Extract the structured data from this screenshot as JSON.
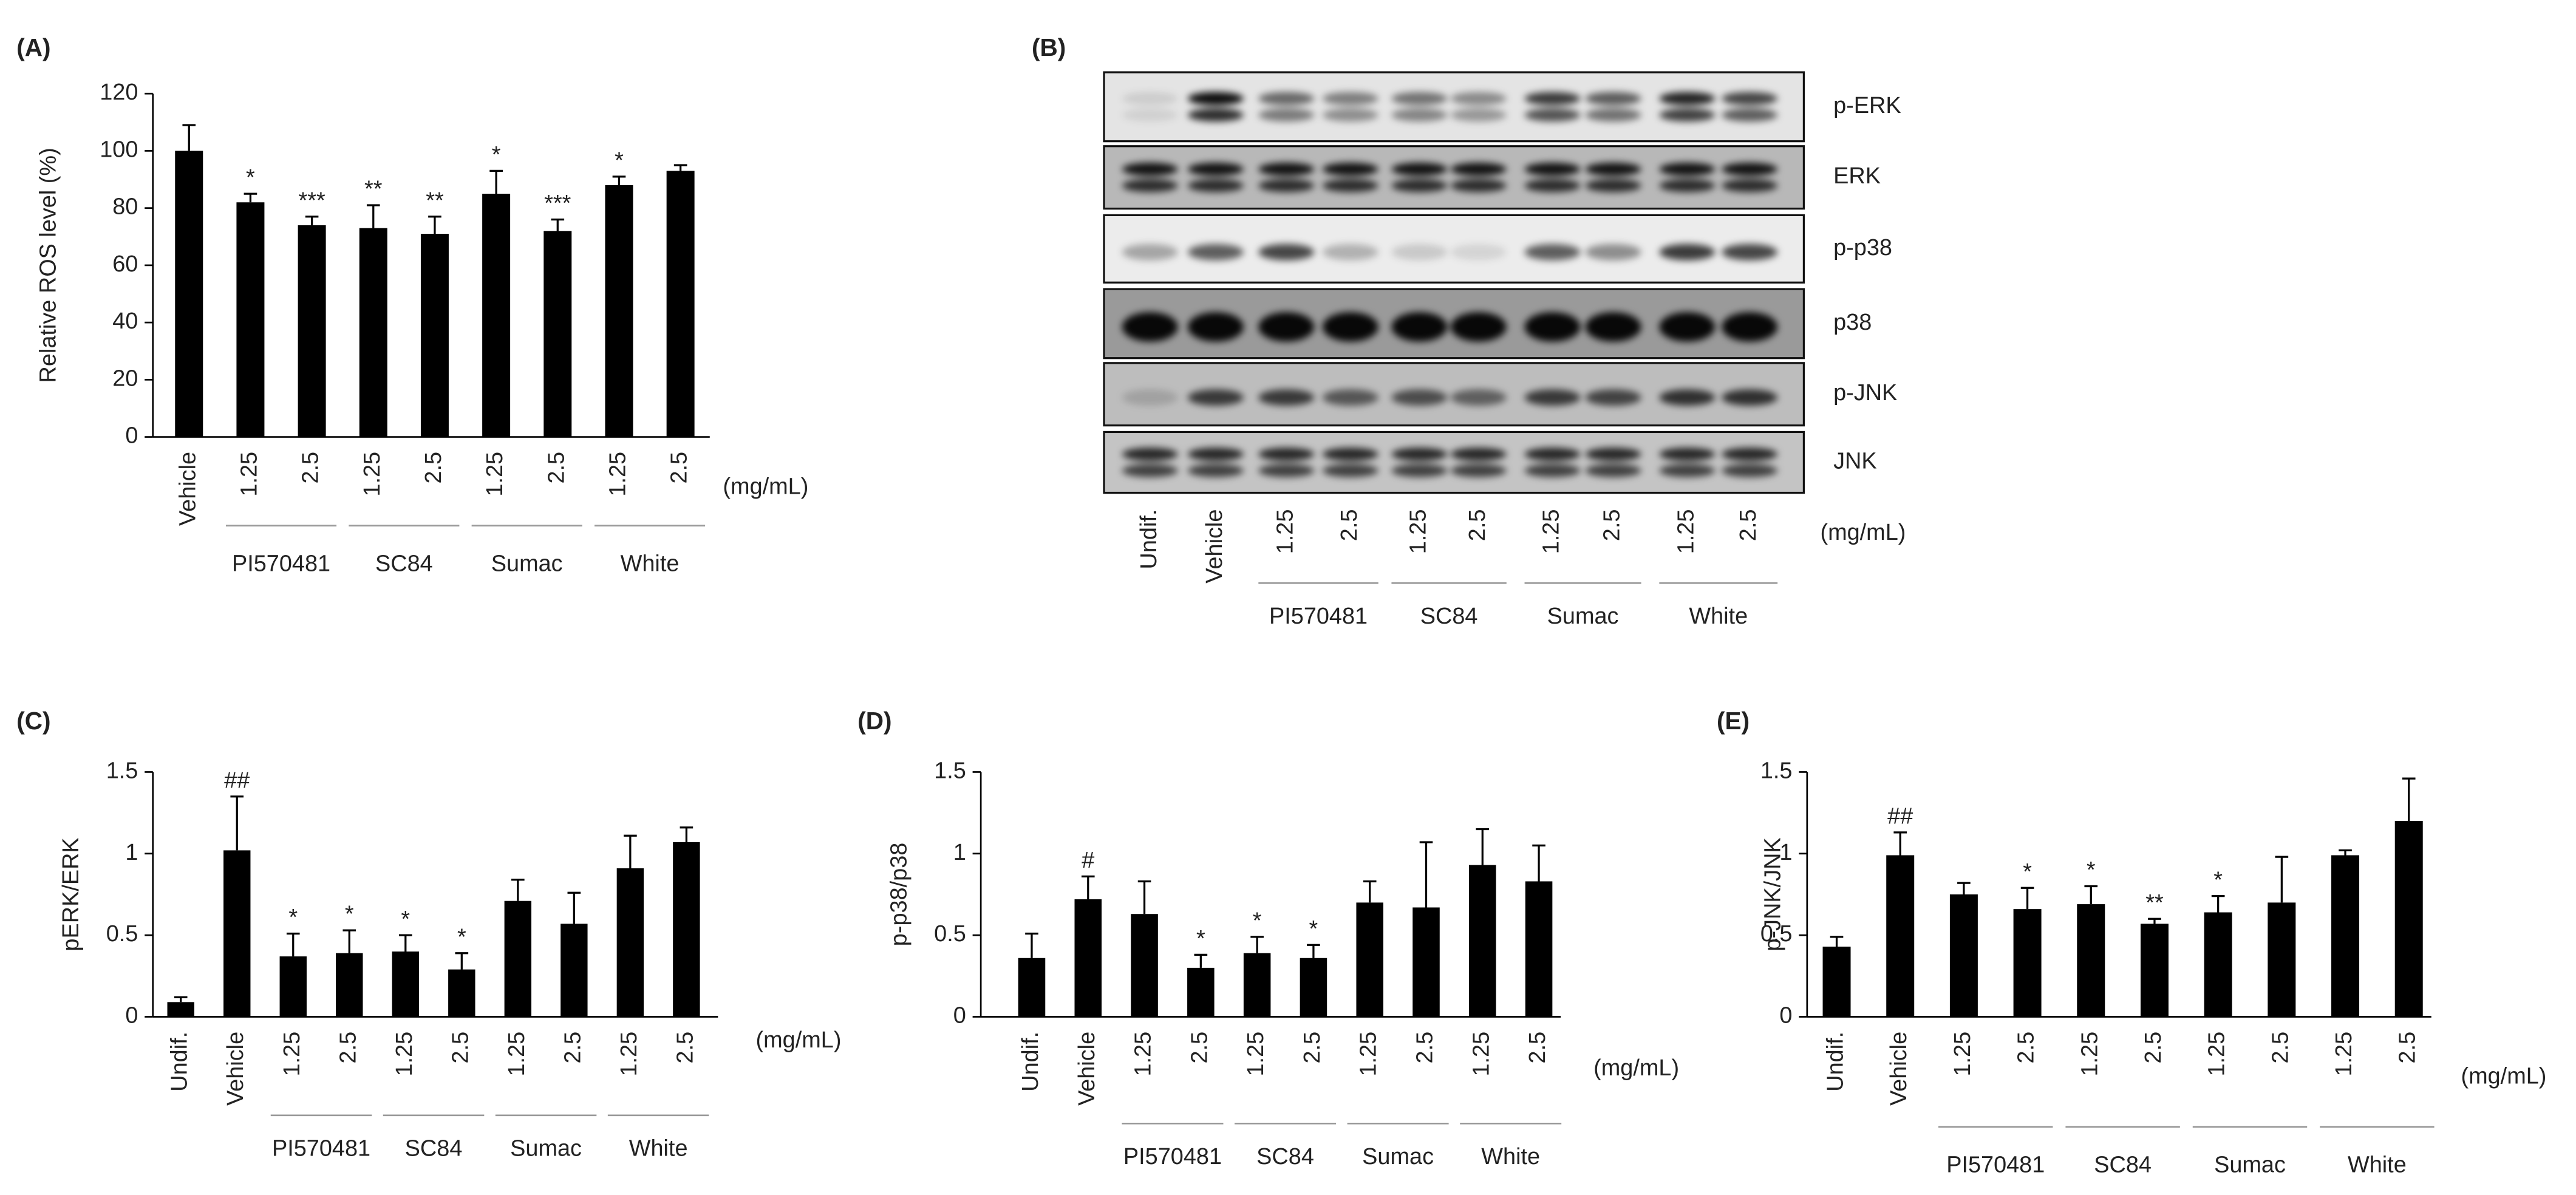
{
  "chart_data": [
    {
      "type": "bar",
      "panel_label": "(A)",
      "y_label": "Relative ROS level (%)",
      "categories": [
        "Vehicle",
        "1.25",
        "2.5",
        "1.25",
        "2.5",
        "1.25",
        "2.5",
        "1.25",
        "2.5"
      ],
      "values": [
        100,
        82,
        74,
        73,
        71,
        85,
        72,
        88,
        93
      ],
      "errors": [
        9,
        3,
        3,
        8,
        6,
        8,
        4,
        3,
        2
      ],
      "annotations": [
        null,
        "*",
        "***",
        "**",
        "**",
        "*",
        "***",
        "*",
        null
      ],
      "groups": [
        "PI570481",
        "SC84",
        "Sumac",
        "White"
      ],
      "unit": "(mg/mL)",
      "ylim": [
        0,
        120
      ],
      "yticks": [
        0,
        20,
        40,
        60,
        80,
        100,
        120
      ],
      "color": "#000000"
    },
    {
      "type": "bar",
      "panel_label": "(C)",
      "y_label": "pERK/ERK",
      "categories": [
        "Undif.",
        "Vehicle",
        "1.25",
        "2.5",
        "1.25",
        "2.5",
        "1.25",
        "2.5",
        "1.25",
        "2.5"
      ],
      "values": [
        0.09,
        1.02,
        0.37,
        0.39,
        0.4,
        0.29,
        0.71,
        0.57,
        0.91,
        1.07
      ],
      "errors": [
        0.03,
        0.33,
        0.14,
        0.14,
        0.1,
        0.1,
        0.13,
        0.19,
        0.2,
        0.09
      ],
      "annotations": [
        null,
        "##",
        "*",
        "*",
        "*",
        "*",
        null,
        null,
        null,
        null
      ],
      "groups": [
        "PI570481",
        "SC84",
        "Sumac",
        "White"
      ],
      "unit": "(mg/mL)",
      "ylim": [
        0,
        1.5
      ],
      "yticks": [
        0,
        0.5,
        1,
        1.5
      ],
      "color": "#000000"
    },
    {
      "type": "bar",
      "panel_label": "(D)",
      "y_label": "p-p38/p38",
      "categories": [
        "Undif.",
        "Vehicle",
        "1.25",
        "2.5",
        "1.25",
        "2.5",
        "1.25",
        "2.5",
        "1.25",
        "2.5"
      ],
      "values": [
        0.36,
        0.72,
        0.63,
        0.3,
        0.39,
        0.36,
        0.7,
        0.67,
        0.93,
        0.83
      ],
      "errors": [
        0.15,
        0.14,
        0.2,
        0.08,
        0.1,
        0.08,
        0.13,
        0.4,
        0.22,
        0.22
      ],
      "annotations": [
        null,
        "#",
        null,
        "*",
        "*",
        "*",
        null,
        null,
        null,
        null
      ],
      "groups": [
        "PI570481",
        "SC84",
        "Sumac",
        "White"
      ],
      "unit": "(mg/mL)",
      "ylim": [
        0,
        1.5
      ],
      "yticks": [
        0,
        0.5,
        1,
        1.5
      ],
      "color": "#000000"
    },
    {
      "type": "bar",
      "panel_label": "(E)",
      "y_label": "p-JNK/JNK",
      "categories": [
        "Undif.",
        "Vehicle",
        "1.25",
        "2.5",
        "1.25",
        "2.5",
        "1.25",
        "2.5",
        "1.25",
        "2.5"
      ],
      "values": [
        0.43,
        0.99,
        0.75,
        0.66,
        0.69,
        0.57,
        0.64,
        0.7,
        0.99,
        1.2
      ],
      "errors": [
        0.06,
        0.14,
        0.07,
        0.13,
        0.11,
        0.03,
        0.1,
        0.28,
        0.03,
        0.26
      ],
      "annotations": [
        null,
        "##",
        null,
        "*",
        "*",
        "**",
        "*",
        null,
        null,
        null
      ],
      "groups": [
        "PI570481",
        "SC84",
        "Sumac",
        "White"
      ],
      "unit": "(mg/mL)",
      "ylim": [
        0,
        1.5
      ],
      "yticks": [
        0,
        0.5,
        1,
        1.5
      ],
      "color": "#000000"
    }
  ],
  "blot": {
    "panel_label": "(B)",
    "rows": [
      "p-ERK",
      "ERK",
      "p-p38",
      "p38",
      "p-JNK",
      "JNK"
    ],
    "lanes": [
      "Undif.",
      "Vehicle",
      "1.25",
      "2.5",
      "1.25",
      "2.5",
      "1.25",
      "2.5",
      "1.25",
      "2.5"
    ],
    "groups": [
      "PI570481",
      "SC84",
      "Sumac",
      "White"
    ],
    "unit": "(mg/mL)"
  }
}
